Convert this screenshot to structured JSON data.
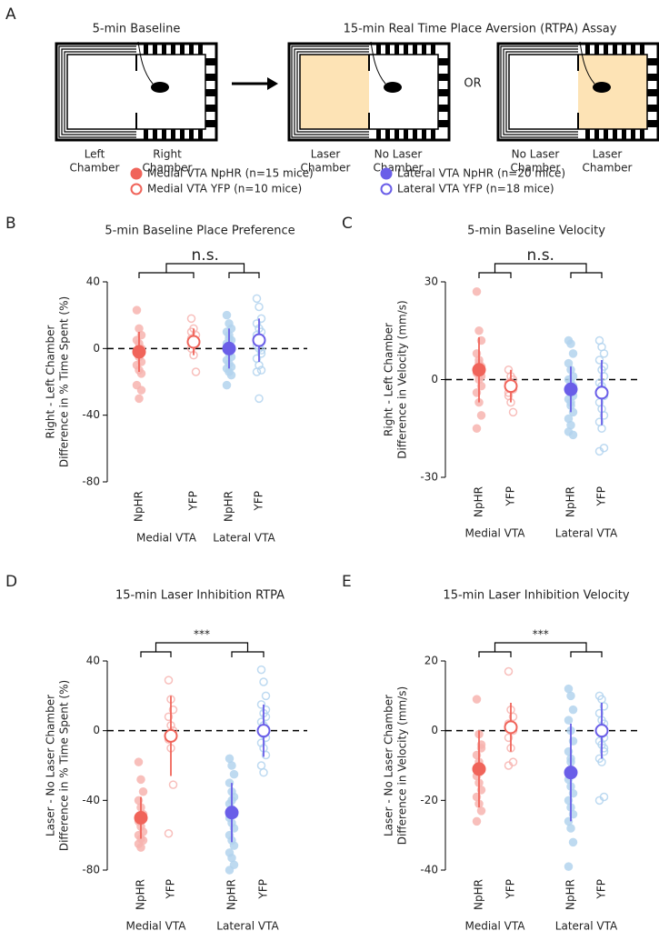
{
  "panel_a": {
    "letter": "A",
    "baseline_title": "5-min Baseline",
    "assay_title": "15-min Real Time Place Aversion (RTPA) Assay",
    "or_label": "OR",
    "chamber_labels": [
      [
        "Left",
        "Chamber"
      ],
      [
        "Right",
        "Chamber"
      ],
      [
        "Laser",
        "Chamber"
      ],
      [
        "No Laser",
        "Chamber"
      ],
      [
        "No Laser",
        "Chamber"
      ],
      [
        "Laser",
        "Chamber"
      ]
    ]
  },
  "legend": [
    {
      "label": "Medial VTA NpHR (n=15 mice)",
      "color": "#f0645a",
      "filled": true
    },
    {
      "label": "Medial VTA YFP (n=10 mice)",
      "color": "#f0645a",
      "filled": false
    },
    {
      "label": "Lateral VTA NpHR (n=20 mice)",
      "color": "#6a5ee8",
      "filled": true
    },
    {
      "label": "Lateral VTA YFP (n=18 mice)",
      "color": "#6a5ee8",
      "filled": false
    }
  ],
  "chart_data": [
    {
      "type": "strip",
      "letter": "B",
      "title": "5-min Baseline Place Preference",
      "significance": "n.s.",
      "ylabel": [
        "Right - Left Chamber",
        "Difference in % Time Spent (%)"
      ],
      "categories": [
        "NpHR",
        "YFP",
        "NpHR",
        "YFP"
      ],
      "group_labels": [
        "Medial VTA",
        "Lateral VTA"
      ],
      "ylim": [
        -80,
        40
      ],
      "yticks": [
        40,
        0,
        -40,
        -80
      ],
      "series": [
        {
          "color": "#f0645a",
          "light_color": "#f7b4b0",
          "filled": true,
          "mean": -2,
          "sd": 12,
          "values": [
            23,
            12,
            8,
            5,
            3,
            0,
            -2,
            -5,
            -8,
            -10,
            -13,
            -15,
            -22,
            -30,
            -25
          ]
        },
        {
          "color": "#f0645a",
          "light_color": "#f7b4b0",
          "filled": false,
          "mean": 4,
          "sd": 8,
          "values": [
            18,
            12,
            8,
            6,
            5,
            3,
            0,
            -4,
            -14,
            10
          ]
        },
        {
          "color": "#6a5ee8",
          "light_color": "#b3d4ee",
          "filled": true,
          "mean": 0,
          "sd": 12,
          "values": [
            20,
            15,
            12,
            10,
            8,
            5,
            3,
            2,
            0,
            -1,
            -3,
            -5,
            -7,
            -9,
            -11,
            -12,
            -14,
            -16,
            -22,
            6
          ]
        },
        {
          "color": "#6a5ee8",
          "light_color": "#b3d4ee",
          "filled": false,
          "mean": 5,
          "sd": 13,
          "values": [
            30,
            25,
            18,
            15,
            12,
            10,
            8,
            6,
            4,
            2,
            0,
            -3,
            -6,
            -10,
            -13,
            -14,
            -30,
            -1
          ]
        }
      ]
    },
    {
      "type": "strip",
      "letter": "C",
      "title": "5-min Baseline Velocity",
      "significance": "n.s.",
      "ylabel": [
        "Right - Left Chamber",
        "Difference in Velocity (mm/s)"
      ],
      "categories": [
        "NpHR",
        "YFP",
        "NpHR",
        "YFP"
      ],
      "group_labels": [
        "Medial VTA",
        "Lateral VTA"
      ],
      "ylim": [
        -30,
        30
      ],
      "yticks": [
        30,
        0,
        -30
      ],
      "series": [
        {
          "color": "#f0645a",
          "light_color": "#f7b4b0",
          "filled": true,
          "mean": 3,
          "sd": 10,
          "values": [
            27,
            15,
            12,
            8,
            6,
            4,
            2,
            0,
            -2,
            -4,
            -7,
            -11,
            -15,
            5,
            1
          ]
        },
        {
          "color": "#f0645a",
          "light_color": "#f7b4b0",
          "filled": false,
          "mean": -2,
          "sd": 5,
          "values": [
            3,
            1,
            0,
            -1,
            -2,
            -3,
            -5,
            -7,
            -10,
            -4
          ]
        },
        {
          "color": "#6a5ee8",
          "light_color": "#b3d4ee",
          "filled": true,
          "mean": -3,
          "sd": 7,
          "values": [
            12,
            11,
            8,
            5,
            3,
            1,
            0,
            -1,
            -2,
            -3,
            -4,
            -5,
            -6,
            -8,
            -10,
            -12,
            -14,
            -17,
            -16,
            -7
          ]
        },
        {
          "color": "#6a5ee8",
          "light_color": "#b3d4ee",
          "filled": false,
          "mean": -4,
          "sd": 10,
          "values": [
            12,
            10,
            8,
            6,
            3,
            1,
            -1,
            -3,
            -5,
            -7,
            -9,
            -11,
            -13,
            -15,
            -21,
            -22,
            -2,
            4
          ]
        }
      ]
    },
    {
      "type": "strip",
      "letter": "D",
      "title": "15-min Laser Inhibition RTPA",
      "significance": "***",
      "ylabel": [
        "Laser - No Laser Chamber",
        "Difference in % Time Spent (%)"
      ],
      "categories": [
        "NpHR",
        "YFP",
        "NpHR",
        "YFP"
      ],
      "group_labels": [
        "Medial VTA",
        "Lateral VTA"
      ],
      "ylim": [
        -80,
        40
      ],
      "yticks": [
        40,
        0,
        -40,
        -80
      ],
      "series": [
        {
          "color": "#f0645a",
          "light_color": "#f7b4b0",
          "filled": true,
          "mean": -50,
          "sd": 12,
          "values": [
            -18,
            -28,
            -35,
            -40,
            -44,
            -48,
            -52,
            -55,
            -58,
            -60,
            -62,
            -63,
            -65,
            -67,
            -50
          ]
        },
        {
          "color": "#f0645a",
          "light_color": "#f7b4b0",
          "filled": false,
          "mean": -3,
          "sd": 23,
          "values": [
            29,
            18,
            12,
            8,
            3,
            0,
            -5,
            -10,
            -31,
            -59
          ]
        },
        {
          "color": "#6a5ee8",
          "light_color": "#b3d4ee",
          "filled": true,
          "mean": -47,
          "sd": 17,
          "values": [
            -16,
            -20,
            -25,
            -30,
            -35,
            -38,
            -42,
            -45,
            -48,
            -50,
            -53,
            -56,
            -60,
            -63,
            -66,
            -70,
            -73,
            -77,
            -80,
            -40
          ]
        },
        {
          "color": "#6a5ee8",
          "light_color": "#b3d4ee",
          "filled": false,
          "mean": 0,
          "sd": 15,
          "values": [
            35,
            28,
            20,
            15,
            10,
            8,
            5,
            3,
            1,
            0,
            -2,
            -4,
            -7,
            -10,
            -14,
            -20,
            -24,
            12
          ]
        }
      ]
    },
    {
      "type": "strip",
      "letter": "E",
      "title": "15-min Laser Inhibition Velocity",
      "significance": "***",
      "ylabel": [
        "Laser - No Laser Chamber",
        "Difference in Velocity (mm/s)"
      ],
      "categories": [
        "NpHR",
        "YFP",
        "NpHR",
        "YFP"
      ],
      "group_labels": [
        "Medial VTA",
        "Lateral VTA"
      ],
      "ylim": [
        -40,
        20
      ],
      "yticks": [
        20,
        0,
        -20,
        -40
      ],
      "series": [
        {
          "color": "#f0645a",
          "light_color": "#f7b4b0",
          "filled": true,
          "mean": -11,
          "sd": 11,
          "values": [
            9,
            -1,
            -4,
            -7,
            -9,
            -11,
            -13,
            -15,
            -17,
            -19,
            -21,
            -23,
            -26,
            -12,
            -5
          ]
        },
        {
          "color": "#f0645a",
          "light_color": "#f7b4b0",
          "filled": false,
          "mean": 1,
          "sd": 7,
          "values": [
            17,
            6,
            4,
            2,
            1,
            0,
            -2,
            -5,
            -9,
            -10
          ]
        },
        {
          "color": "#6a5ee8",
          "light_color": "#b3d4ee",
          "filled": true,
          "mean": -12,
          "sd": 14,
          "values": [
            12,
            10,
            6,
            3,
            0,
            -3,
            -6,
            -9,
            -12,
            -14,
            -16,
            -18,
            -20,
            -22,
            -24,
            -26,
            -28,
            -32,
            -39,
            -8
          ]
        },
        {
          "color": "#6a5ee8",
          "light_color": "#b3d4ee",
          "filled": false,
          "mean": 0,
          "sd": 8,
          "values": [
            10,
            9,
            7,
            5,
            3,
            2,
            0,
            -1,
            -2,
            -3,
            -4,
            -6,
            -8,
            -9,
            -19,
            -20,
            1,
            -5
          ]
        }
      ]
    }
  ]
}
